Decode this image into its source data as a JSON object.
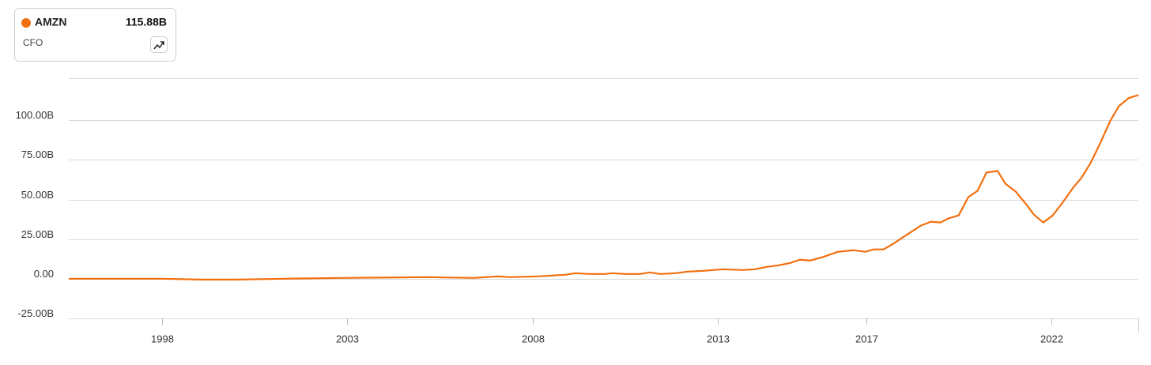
{
  "chart_data": {
    "type": "line",
    "legend": {
      "metric": "CFO",
      "value_label": "115.88B"
    },
    "series": [
      {
        "name": "AMZN",
        "color": "#f26f0f",
        "x": [
          1995.48,
          1998.0,
          1999.06,
          2000.02,
          2001.3,
          2002.8,
          2005.14,
          2006.42,
          2007.06,
          2007.38,
          2008.13,
          2008.88,
          2009.15,
          2009.52,
          2009.94,
          2010.16,
          2010.48,
          2010.9,
          2011.16,
          2011.44,
          2011.86,
          2012.18,
          2012.61,
          2013.14,
          2013.68,
          2014.0,
          2014.32,
          2014.64,
          2014.96,
          2015.21,
          2015.49,
          2015.81,
          2016.24,
          2016.66,
          2016.98,
          2017.2,
          2017.47,
          2017.73,
          2018.05,
          2018.48,
          2018.75,
          2019.01,
          2019.22,
          2019.5,
          2019.76,
          2020.01,
          2020.25,
          2020.55,
          2020.76,
          2021.04,
          2021.32,
          2021.53,
          2021.78,
          2022.04,
          2022.32,
          2022.59,
          2022.81,
          2023.06,
          2023.32,
          2023.6,
          2023.83,
          2024.09,
          2024.35
        ],
        "values": [
          0,
          0,
          -0.5,
          -0.5,
          0,
          0.5,
          1,
          0.5,
          1.5,
          1,
          1.5,
          2.5,
          3.5,
          3,
          3,
          3.5,
          3,
          3,
          4,
          3,
          3.5,
          4.5,
          5,
          6,
          5.5,
          6,
          7.5,
          8.5,
          10,
          12,
          11.5,
          13.5,
          17,
          18,
          17,
          18.5,
          18.5,
          22,
          27,
          33.5,
          36,
          35.5,
          38,
          40,
          51.5,
          55.5,
          67,
          68,
          60,
          55,
          47,
          40.5,
          35.5,
          40,
          48.5,
          57.5,
          63.5,
          73,
          85.5,
          100,
          109,
          114,
          115.88
        ]
      }
    ],
    "xlim": [
      1995.48,
      2024.35
    ],
    "xticks": [
      1998,
      2003,
      2008,
      2013,
      2017,
      2022
    ],
    "ylim": [
      -25,
      126.5
    ],
    "yticks": [
      {
        "value": -25,
        "label": "-25.00B"
      },
      {
        "value": 0,
        "label": "0.00"
      },
      {
        "value": 25,
        "label": "25.00B"
      },
      {
        "value": 50,
        "label": "50.00B"
      },
      {
        "value": 75,
        "label": "75.00B"
      },
      {
        "value": 100,
        "label": "100.00B"
      }
    ],
    "grid": true
  }
}
